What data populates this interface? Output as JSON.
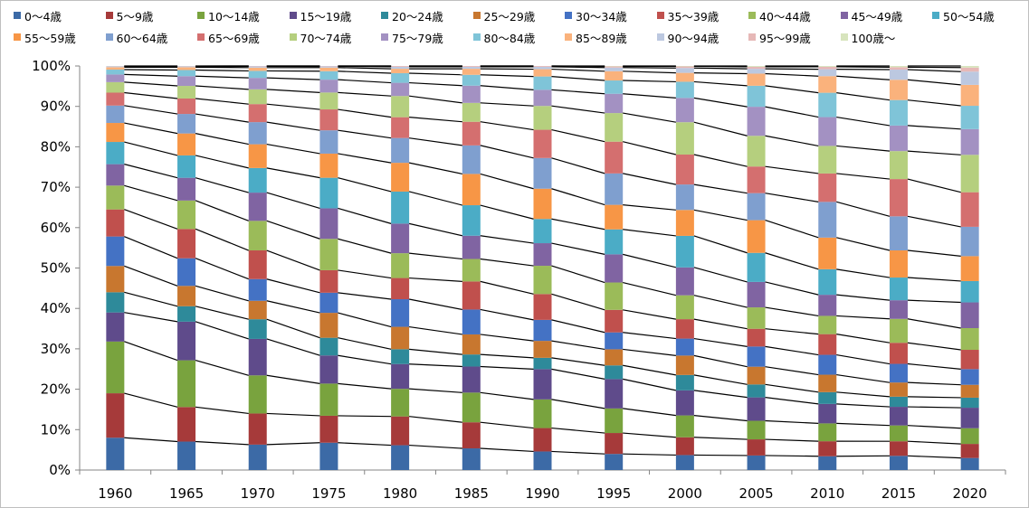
{
  "chart_data": {
    "type": "bar",
    "stacked": true,
    "percent": true,
    "categories": [
      "1960",
      "1965",
      "1970",
      "1975",
      "1980",
      "1985",
      "1990",
      "1995",
      "2000",
      "2005",
      "2010",
      "2015",
      "2020"
    ],
    "ylim": [
      0,
      100
    ],
    "yticks": [
      "0%",
      "10%",
      "20%",
      "30%",
      "40%",
      "50%",
      "60%",
      "70%",
      "80%",
      "90%",
      "100%"
    ],
    "legend_position": "top",
    "series_lines": true,
    "series": [
      {
        "name": "0～4歳",
        "color": "#3C6AA6",
        "values": [
          8.0,
          7.0,
          6.2,
          6.8,
          6.2,
          5.4,
          4.6,
          4.0,
          3.7,
          3.6,
          3.4,
          3.5,
          3.0
        ]
      },
      {
        "name": "5～9歳",
        "color": "#A63A3A",
        "values": [
          11.0,
          8.5,
          7.6,
          6.7,
          7.2,
          6.5,
          5.8,
          5.2,
          4.4,
          4.0,
          3.7,
          3.6,
          3.5
        ]
      },
      {
        "name": "10～14歳",
        "color": "#79A33E",
        "values": [
          12.8,
          11.5,
          9.3,
          8.0,
          6.9,
          7.4,
          7.1,
          6.1,
          5.4,
          4.6,
          4.4,
          3.9,
          3.9
        ]
      },
      {
        "name": "15～19歳",
        "color": "#5F4B8B",
        "values": [
          7.2,
          9.5,
          8.9,
          7.0,
          6.2,
          6.5,
          7.5,
          7.3,
          6.2,
          5.8,
          4.8,
          4.6,
          5.1
        ]
      },
      {
        "name": "20～24歳",
        "color": "#2E8A9A",
        "values": [
          5.0,
          3.8,
          4.8,
          4.4,
          3.7,
          3.0,
          2.8,
          3.4,
          3.8,
          3.2,
          2.9,
          2.5,
          2.5
        ]
      },
      {
        "name": "25～29歳",
        "color": "#C8772F",
        "values": [
          6.5,
          5.0,
          4.5,
          6.2,
          5.6,
          5.0,
          4.2,
          4.0,
          4.8,
          4.4,
          4.3,
          3.5,
          3.2
        ]
      },
      {
        "name": "30～34歳",
        "color": "#4472C4",
        "values": [
          7.3,
          6.8,
          5.3,
          5.0,
          6.9,
          6.2,
          5.2,
          4.2,
          4.2,
          5.0,
          4.9,
          4.6,
          3.9
        ]
      },
      {
        "name": "35～39歳",
        "color": "#C0504D",
        "values": [
          6.7,
          7.2,
          7.0,
          5.6,
          5.3,
          7.0,
          6.4,
          5.6,
          4.8,
          4.4,
          5.1,
          5.2,
          4.8
        ]
      },
      {
        "name": "40～44歳",
        "color": "#9BBB59",
        "values": [
          5.9,
          7.0,
          7.2,
          7.8,
          6.2,
          5.6,
          7.0,
          6.8,
          5.9,
          5.3,
          4.5,
          5.9,
          5.4
        ]
      },
      {
        "name": "45～49歳",
        "color": "#8064A2",
        "values": [
          5.3,
          5.6,
          6.9,
          7.6,
          7.4,
          5.8,
          5.6,
          7.0,
          6.9,
          6.3,
          5.2,
          4.6,
          6.4
        ]
      },
      {
        "name": "50～54歳",
        "color": "#4BACC6",
        "values": [
          5.5,
          5.5,
          6.0,
          7.6,
          8.0,
          7.6,
          6.0,
          6.2,
          7.8,
          7.2,
          6.3,
          5.6,
          5.3
        ]
      },
      {
        "name": "55～59歳",
        "color": "#F79646",
        "values": [
          4.7,
          5.4,
          5.8,
          6.0,
          7.2,
          7.8,
          7.5,
          6.1,
          6.4,
          8.1,
          7.8,
          6.7,
          6.2
        ]
      },
      {
        "name": "60～64歳",
        "color": "#7F9FCF",
        "values": [
          4.3,
          4.8,
          5.4,
          5.8,
          6.2,
          7.1,
          7.6,
          7.8,
          6.3,
          6.7,
          8.8,
          8.4,
          7.3
        ]
      },
      {
        "name": "65～69歳",
        "color": "#D46F6F",
        "values": [
          3.2,
          3.8,
          4.4,
          5.2,
          5.2,
          5.9,
          7.0,
          7.9,
          7.4,
          6.6,
          7.0,
          9.2,
          8.6
        ]
      },
      {
        "name": "70～74歳",
        "color": "#B5CF7E",
        "values": [
          2.6,
          3.1,
          3.6,
          4.2,
          5.3,
          4.7,
          5.9,
          7.1,
          8.0,
          7.6,
          6.8,
          6.9,
          9.3
        ]
      },
      {
        "name": "75～79歳",
        "color": "#A391C2",
        "values": [
          1.9,
          2.4,
          2.8,
          3.2,
          3.3,
          4.3,
          4.0,
          4.8,
          6.0,
          7.2,
          7.1,
          6.3,
          6.4
        ]
      },
      {
        "name": "80～84歳",
        "color": "#7FC4D8",
        "values": [
          1.2,
          1.5,
          1.7,
          2.1,
          2.4,
          2.7,
          3.3,
          3.3,
          4.0,
          5.2,
          6.0,
          6.3,
          5.8
        ]
      },
      {
        "name": "85～89歳",
        "color": "#FAB27C",
        "values": [
          0.6,
          0.7,
          0.8,
          0.9,
          1.1,
          1.5,
          1.8,
          2.3,
          2.2,
          3.0,
          4.1,
          5.0,
          5.2
        ]
      },
      {
        "name": "90～94歳",
        "color": "#BCC8E0",
        "values": [
          0.2,
          0.2,
          0.3,
          0.3,
          0.5,
          0.5,
          0.6,
          0.9,
          1.2,
          1.2,
          1.7,
          2.5,
          3.3
        ]
      },
      {
        "name": "95～99歳",
        "color": "#E6B8B7",
        "values": [
          0.07,
          0.08,
          0.1,
          0.1,
          0.2,
          0.2,
          0.2,
          0.3,
          0.4,
          0.5,
          0.6,
          0.6,
          1.0
        ]
      },
      {
        "name": "100歳～",
        "color": "#D7E4BD",
        "values": [
          0.03,
          0.02,
          0.0,
          0.0,
          0.0,
          0.0,
          0.0,
          0.1,
          0.1,
          0.2,
          0.2,
          0.3,
          0.4
        ]
      }
    ]
  }
}
